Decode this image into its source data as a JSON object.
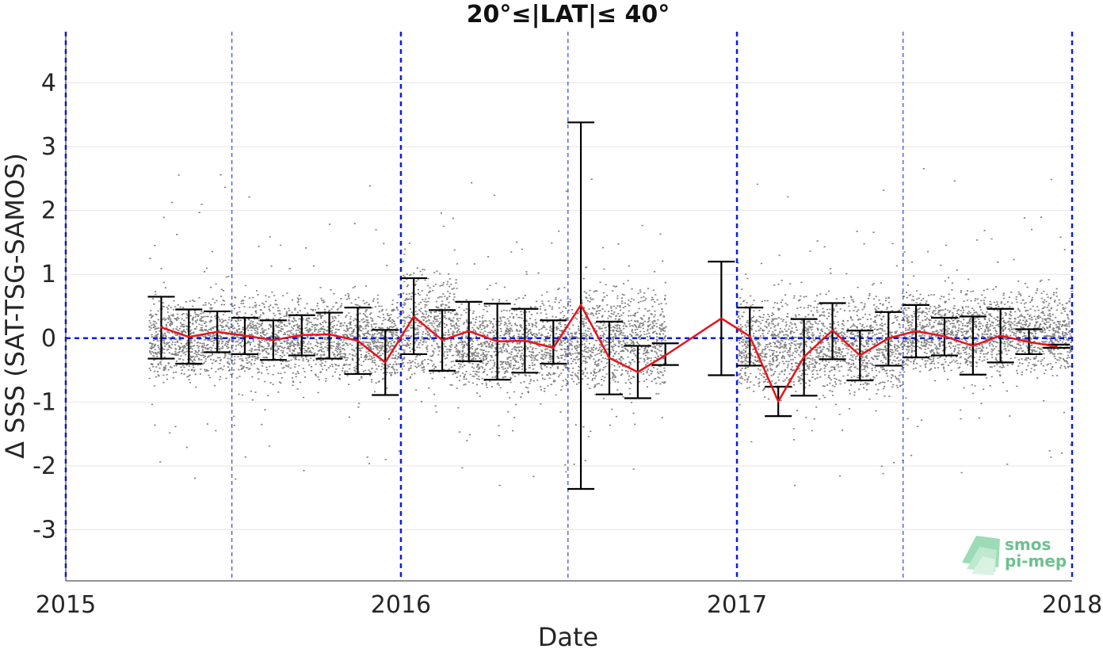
{
  "chart_data": {
    "type": "line",
    "title": "20°≤|LAT|≤ 40°",
    "xlabel": "Date",
    "ylabel": "Δ SSS (SAT-TSG-SAMOS)",
    "xlim": [
      "2015-01-01",
      "2018-01-01"
    ],
    "ylim": [
      -3.8,
      4.8
    ],
    "x_ticks": [
      "2015",
      "2016",
      "2017",
      "2018"
    ],
    "y_ticks": [
      -3,
      -2,
      -1,
      0,
      1,
      2,
      3,
      4
    ],
    "grid": "horizontal",
    "year_lines": [
      "2015-01-01",
      "2016-01-01",
      "2017-01-01",
      "2018-01-01"
    ],
    "half_year_lines": [
      "2015-07-01",
      "2016-07-01",
      "2017-07-01"
    ],
    "zero_line": 0,
    "colors": {
      "scatter": "#808080",
      "mean_line": "#e8141b",
      "error_bars": "#000000",
      "reference_lines": "#0b1de6",
      "grid": "#e6e6e6"
    },
    "series": [
      {
        "style": "error-bar",
        "x": [
          "2015-04-15",
          "2015-05-15",
          "2015-06-15",
          "2015-07-15",
          "2015-08-15",
          "2015-09-15",
          "2015-10-15",
          "2015-11-15",
          "2015-12-15",
          "2016-01-15",
          "2016-02-15",
          "2016-03-15",
          "2016-04-15",
          "2016-05-15",
          "2016-06-15",
          "2016-07-15",
          "2016-08-15",
          "2016-09-15",
          "2016-10-15",
          "2016-12-15",
          "2017-01-15",
          "2017-02-15",
          "2017-03-15",
          "2017-04-15",
          "2017-05-15",
          "2017-06-15",
          "2017-07-15",
          "2017-08-15",
          "2017-09-15",
          "2017-10-15",
          "2017-11-15",
          "2017-12-15"
        ],
        "mean": [
          0.17,
          0.02,
          0.1,
          0.04,
          -0.03,
          0.05,
          0.06,
          -0.04,
          -0.38,
          0.34,
          -0.03,
          0.11,
          -0.05,
          -0.04,
          -0.15,
          0.52,
          -0.31,
          -0.53,
          -0.27,
          0.31,
          0.03,
          -0.99,
          -0.29,
          0.12,
          -0.27,
          0.0,
          0.11,
          0.03,
          -0.12,
          0.04,
          -0.06,
          -0.13
        ],
        "upper": [
          0.65,
          0.45,
          0.42,
          0.32,
          0.28,
          0.36,
          0.4,
          0.48,
          0.13,
          0.94,
          0.44,
          0.57,
          0.54,
          0.46,
          0.28,
          3.38,
          0.26,
          -0.12,
          -0.08,
          1.2,
          0.48,
          -0.76,
          0.3,
          0.55,
          0.12,
          0.41,
          0.52,
          0.32,
          0.34,
          0.46,
          0.14,
          -0.1
        ],
        "lower": [
          -0.32,
          -0.4,
          -0.22,
          -0.25,
          -0.34,
          -0.27,
          -0.32,
          -0.56,
          -0.89,
          -0.25,
          -0.51,
          -0.36,
          -0.65,
          -0.54,
          -0.4,
          -2.36,
          -0.88,
          -0.94,
          -0.42,
          -0.58,
          -0.43,
          -1.22,
          -0.9,
          -0.33,
          -0.66,
          -0.43,
          -0.3,
          -0.27,
          -0.57,
          -0.38,
          -0.25,
          -0.15
        ]
      }
    ],
    "scatter_clusters": [
      {
        "x": [
          "2015-04-01",
          "2015-12-31"
        ],
        "center": 0.0,
        "spread": 0.55
      },
      {
        "x": [
          "2016-01-01",
          "2016-03-01"
        ],
        "center": 0.2,
        "spread": 0.75
      },
      {
        "x": [
          "2016-03-01",
          "2016-07-15"
        ],
        "center": -0.1,
        "spread": 0.6
      },
      {
        "x": [
          "2016-07-15",
          "2016-10-15"
        ],
        "center": 0.0,
        "spread": 0.7
      },
      {
        "x": [
          "2017-01-01",
          "2017-07-01"
        ],
        "center": -0.1,
        "spread": 0.65
      },
      {
        "x": [
          "2017-07-01",
          "2017-12-31"
        ],
        "center": 0.1,
        "spread": 0.55
      }
    ]
  },
  "logo": {
    "line1": "smos",
    "line2": "pi-mep"
  }
}
